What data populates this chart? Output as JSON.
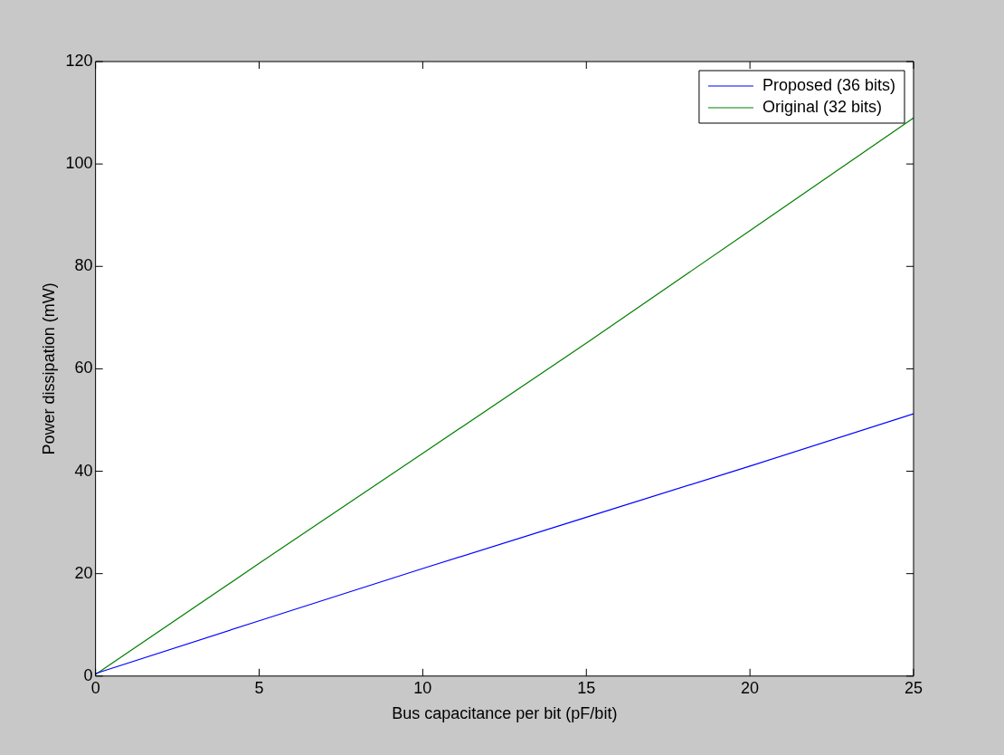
{
  "chart_data": {
    "type": "line",
    "xlabel": "Bus capacitance per bit (pF/bit)",
    "ylabel": "Power dissipation (mW)",
    "x": [
      0,
      5,
      10,
      15,
      20,
      25
    ],
    "series": [
      {
        "name": "Proposed (36 bits)",
        "color": "#0000ff",
        "values": [
          0.5,
          10.8,
          21,
          31,
          41,
          51.2
        ]
      },
      {
        "name": "Original (32 bits)",
        "color": "#008000",
        "values": [
          0.3,
          22,
          43.5,
          65,
          87,
          109
        ]
      }
    ],
    "xlim": [
      0,
      25
    ],
    "xticks": [
      0,
      5,
      10,
      15,
      20,
      25
    ],
    "ylim": [
      0,
      120
    ],
    "yticks": [
      0,
      20,
      40,
      60,
      80,
      100,
      120
    ],
    "grid": false,
    "legend": "top right",
    "marker": "none",
    "line_style": "solid"
  }
}
